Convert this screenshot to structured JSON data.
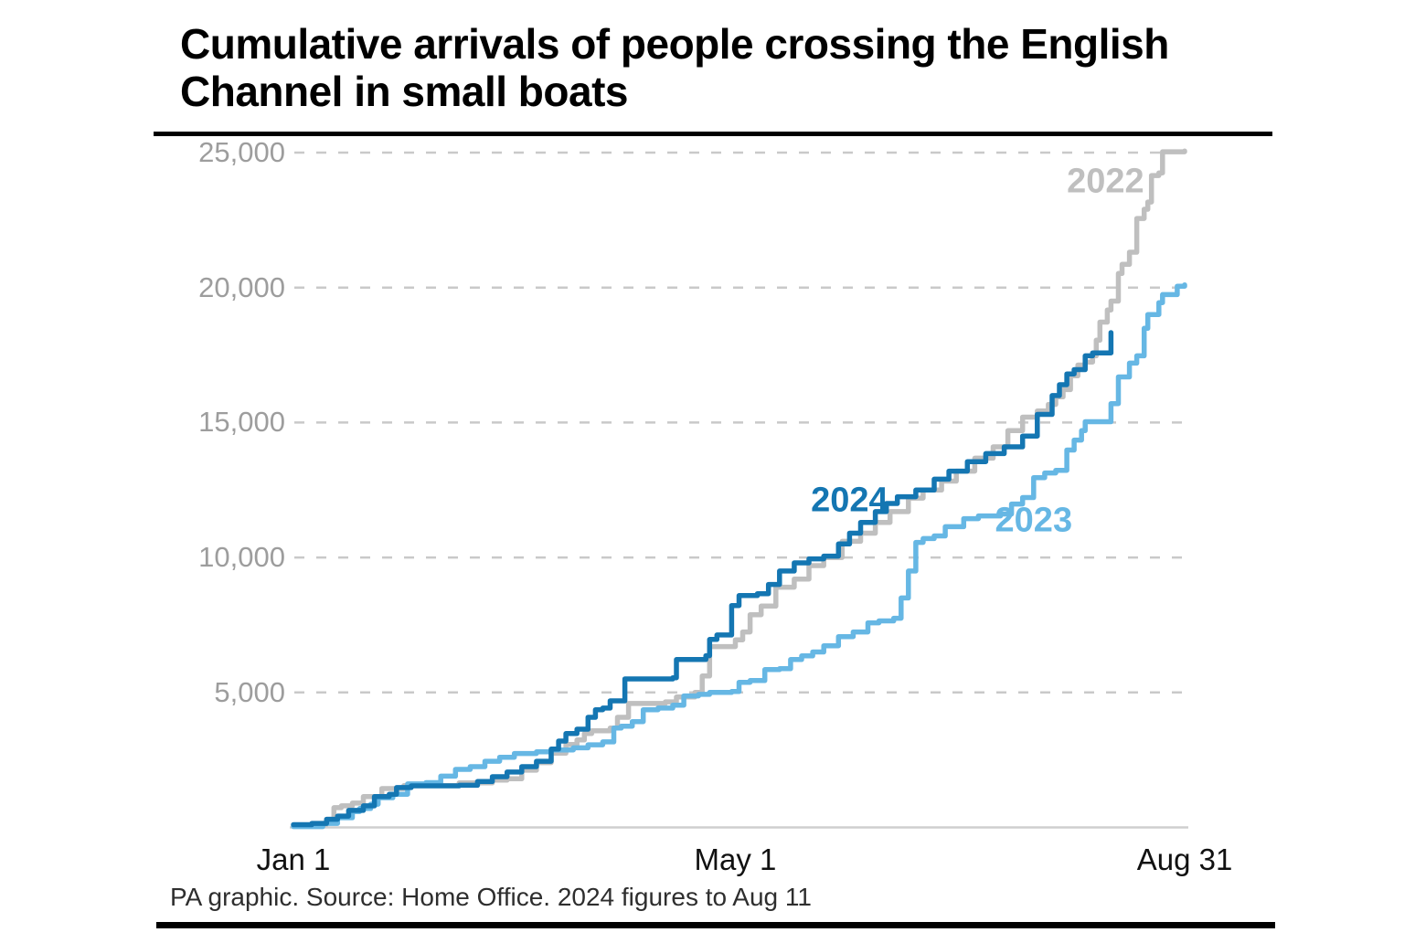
{
  "title": "Cumulative arrivals of people crossing the English Channel in small boats",
  "footer": "PA graphic. Source: Home Office. 2024 figures to Aug 11",
  "colors": {
    "series_2022": "#bfbfbf",
    "series_2023": "#66b7e4",
    "series_2024": "#1476b2",
    "gridline": "#c9c9c9",
    "baseline": "#cfcfcf",
    "tick_label": "#9d9d9d",
    "axis_label": "#111111",
    "rule": "#000000"
  },
  "chart_data": {
    "type": "line",
    "line_style": "step-after",
    "title": "Cumulative arrivals of people crossing the English Channel in small boats",
    "xlabel": "",
    "ylabel": "",
    "x_axis": {
      "unit": "day of year (Jan 1 = 0)",
      "range_days": [
        0,
        242
      ],
      "tick_days": [
        0,
        120,
        242
      ],
      "tick_labels": [
        "Jan 1",
        "May 1",
        "Aug 31"
      ]
    },
    "y_axis": {
      "range": [
        0,
        25000
      ],
      "ticks": [
        5000,
        10000,
        15000,
        20000,
        25000
      ],
      "tick_labels": [
        "5,000",
        "10,000",
        "15,000",
        "20,000",
        "25,000"
      ],
      "gridlines": "dashed"
    },
    "legend_position": "inline-labels-on-chart",
    "series": [
      {
        "name": "2022",
        "color_key": "series_2022",
        "label_anchor": {
          "day": 220.5,
          "value": 23900
        },
        "points": [
          [
            0,
            60
          ],
          [
            6,
            120
          ],
          [
            9,
            300
          ],
          [
            11,
            730
          ],
          [
            13,
            800
          ],
          [
            16,
            900
          ],
          [
            19,
            1140
          ],
          [
            24,
            1440
          ],
          [
            30,
            1550
          ],
          [
            45,
            1650
          ],
          [
            54,
            1750
          ],
          [
            58,
            1800
          ],
          [
            62,
            2120
          ],
          [
            66,
            2400
          ],
          [
            70,
            2750
          ],
          [
            74,
            3070
          ],
          [
            77,
            3240
          ],
          [
            79,
            3475
          ],
          [
            81,
            3580
          ],
          [
            86,
            3680
          ],
          [
            88,
            4080
          ],
          [
            91,
            4590
          ],
          [
            101,
            4650
          ],
          [
            104,
            4830
          ],
          [
            109,
            5000
          ],
          [
            111,
            5610
          ],
          [
            113,
            6700
          ],
          [
            120,
            6950
          ],
          [
            122,
            7240
          ],
          [
            124,
            7880
          ],
          [
            127,
            8200
          ],
          [
            131,
            8900
          ],
          [
            136,
            9200
          ],
          [
            140,
            9700
          ],
          [
            144,
            10000
          ],
          [
            149,
            10600
          ],
          [
            154,
            10900
          ],
          [
            158,
            11300
          ],
          [
            162,
            11700
          ],
          [
            167,
            12200
          ],
          [
            171,
            12500
          ],
          [
            176,
            12830
          ],
          [
            180,
            13200
          ],
          [
            185,
            13680
          ],
          [
            190,
            14100
          ],
          [
            194,
            14700
          ],
          [
            198,
            15200
          ],
          [
            202,
            15430
          ],
          [
            205,
            15670
          ],
          [
            207,
            15950
          ],
          [
            209,
            16220
          ],
          [
            211,
            16730
          ],
          [
            213,
            17130
          ],
          [
            215,
            17240
          ],
          [
            217,
            17470
          ],
          [
            218,
            18050
          ],
          [
            219,
            18720
          ],
          [
            221,
            19170
          ],
          [
            222,
            19500
          ],
          [
            224,
            20520
          ],
          [
            225,
            20860
          ],
          [
            227,
            21310
          ],
          [
            229,
            22560
          ],
          [
            231,
            22900
          ],
          [
            232,
            23170
          ],
          [
            233,
            24150
          ],
          [
            235,
            24250
          ],
          [
            236,
            25030
          ],
          [
            242,
            25060
          ]
        ]
      },
      {
        "name": "2023",
        "color_key": "series_2023",
        "label_anchor": {
          "day": 201,
          "value": 11350
        },
        "points": [
          [
            0,
            30
          ],
          [
            8,
            150
          ],
          [
            12,
            360
          ],
          [
            16,
            590
          ],
          [
            18,
            700
          ],
          [
            21,
            860
          ],
          [
            23,
            1100
          ],
          [
            27,
            1230
          ],
          [
            31,
            1610
          ],
          [
            36,
            1660
          ],
          [
            40,
            1900
          ],
          [
            44,
            2150
          ],
          [
            48,
            2250
          ],
          [
            52,
            2450
          ],
          [
            56,
            2600
          ],
          [
            60,
            2740
          ],
          [
            66,
            2800
          ],
          [
            70,
            2870
          ],
          [
            76,
            2950
          ],
          [
            80,
            3060
          ],
          [
            84,
            3170
          ],
          [
            87,
            3680
          ],
          [
            89,
            3750
          ],
          [
            92,
            3920
          ],
          [
            95,
            4360
          ],
          [
            99,
            4420
          ],
          [
            103,
            4530
          ],
          [
            106,
            4870
          ],
          [
            110,
            4930
          ],
          [
            113,
            5000
          ],
          [
            119,
            5035
          ],
          [
            121,
            5375
          ],
          [
            124,
            5440
          ],
          [
            128,
            5845
          ],
          [
            132,
            5880
          ],
          [
            135,
            6220
          ],
          [
            138,
            6355
          ],
          [
            141,
            6500
          ],
          [
            144,
            6730
          ],
          [
            148,
            7070
          ],
          [
            152,
            7240
          ],
          [
            156,
            7580
          ],
          [
            159,
            7650
          ],
          [
            163,
            7750
          ],
          [
            165,
            8500
          ],
          [
            167,
            9500
          ],
          [
            169,
            10560
          ],
          [
            171,
            10700
          ],
          [
            174,
            10800
          ],
          [
            177,
            11140
          ],
          [
            182,
            11440
          ],
          [
            186,
            11540
          ],
          [
            192,
            11610
          ],
          [
            195,
            11980
          ],
          [
            198,
            12220
          ],
          [
            201,
            12960
          ],
          [
            204,
            13130
          ],
          [
            207,
            13230
          ],
          [
            210,
            13980
          ],
          [
            212,
            14350
          ],
          [
            214,
            14700
          ],
          [
            215,
            15030
          ],
          [
            221,
            15030
          ],
          [
            222,
            15700
          ],
          [
            224,
            16690
          ],
          [
            227,
            17200
          ],
          [
            229,
            17470
          ],
          [
            231,
            18490
          ],
          [
            232,
            19000
          ],
          [
            235,
            19440
          ],
          [
            236,
            19740
          ],
          [
            239,
            19740
          ],
          [
            240,
            20050
          ],
          [
            242,
            20100
          ]
        ]
      },
      {
        "name": "2024",
        "color_key": "series_2024",
        "label_anchor": {
          "day": 151,
          "value": 12100
        },
        "points": [
          [
            0,
            100
          ],
          [
            5,
            150
          ],
          [
            9,
            300
          ],
          [
            12,
            420
          ],
          [
            15,
            630
          ],
          [
            19,
            800
          ],
          [
            22,
            1140
          ],
          [
            26,
            1230
          ],
          [
            28,
            1475
          ],
          [
            32,
            1540
          ],
          [
            45,
            1560
          ],
          [
            50,
            1700
          ],
          [
            54,
            1880
          ],
          [
            58,
            2050
          ],
          [
            62,
            2250
          ],
          [
            66,
            2450
          ],
          [
            70,
            2900
          ],
          [
            72,
            3200
          ],
          [
            74,
            3475
          ],
          [
            77,
            3640
          ],
          [
            80,
            4080
          ],
          [
            82,
            4360
          ],
          [
            84,
            4420
          ],
          [
            86,
            4690
          ],
          [
            90,
            5500
          ],
          [
            103,
            5545
          ],
          [
            104,
            6220
          ],
          [
            112,
            6360
          ],
          [
            113,
            6965
          ],
          [
            115,
            7130
          ],
          [
            119,
            8220
          ],
          [
            121,
            8590
          ],
          [
            126,
            8660
          ],
          [
            129,
            9000
          ],
          [
            132,
            9500
          ],
          [
            136,
            9800
          ],
          [
            140,
            9950
          ],
          [
            144,
            10050
          ],
          [
            148,
            10500
          ],
          [
            151,
            10900
          ],
          [
            154,
            11300
          ],
          [
            158,
            11700
          ],
          [
            161,
            12000
          ],
          [
            164,
            12250
          ],
          [
            169,
            12500
          ],
          [
            174,
            12900
          ],
          [
            178,
            13200
          ],
          [
            183,
            13550
          ],
          [
            188,
            13850
          ],
          [
            193,
            14100
          ],
          [
            198,
            14500
          ],
          [
            202,
            15300
          ],
          [
            206,
            16000
          ],
          [
            208,
            16400
          ],
          [
            210,
            16800
          ],
          [
            212,
            16960
          ],
          [
            215,
            17470
          ],
          [
            217,
            17580
          ],
          [
            221,
            17580
          ],
          [
            222,
            18330
          ]
        ]
      }
    ]
  }
}
